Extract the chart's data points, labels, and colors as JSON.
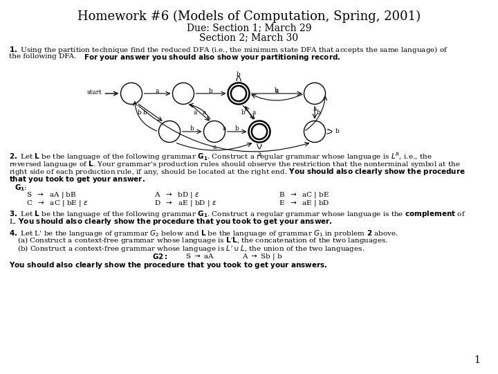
{
  "title": "Homework #6 (Models of Computation, Spring, 2001)",
  "subtitle1": "Due: Section 1; March 29",
  "subtitle2": "Section 2; March 30",
  "background_color": "#ffffff",
  "text_color": "#000000",
  "title_fontsize": 13,
  "subtitle_fontsize": 10,
  "body_fontsize": 7.5,
  "page_num_fontsize": 10
}
